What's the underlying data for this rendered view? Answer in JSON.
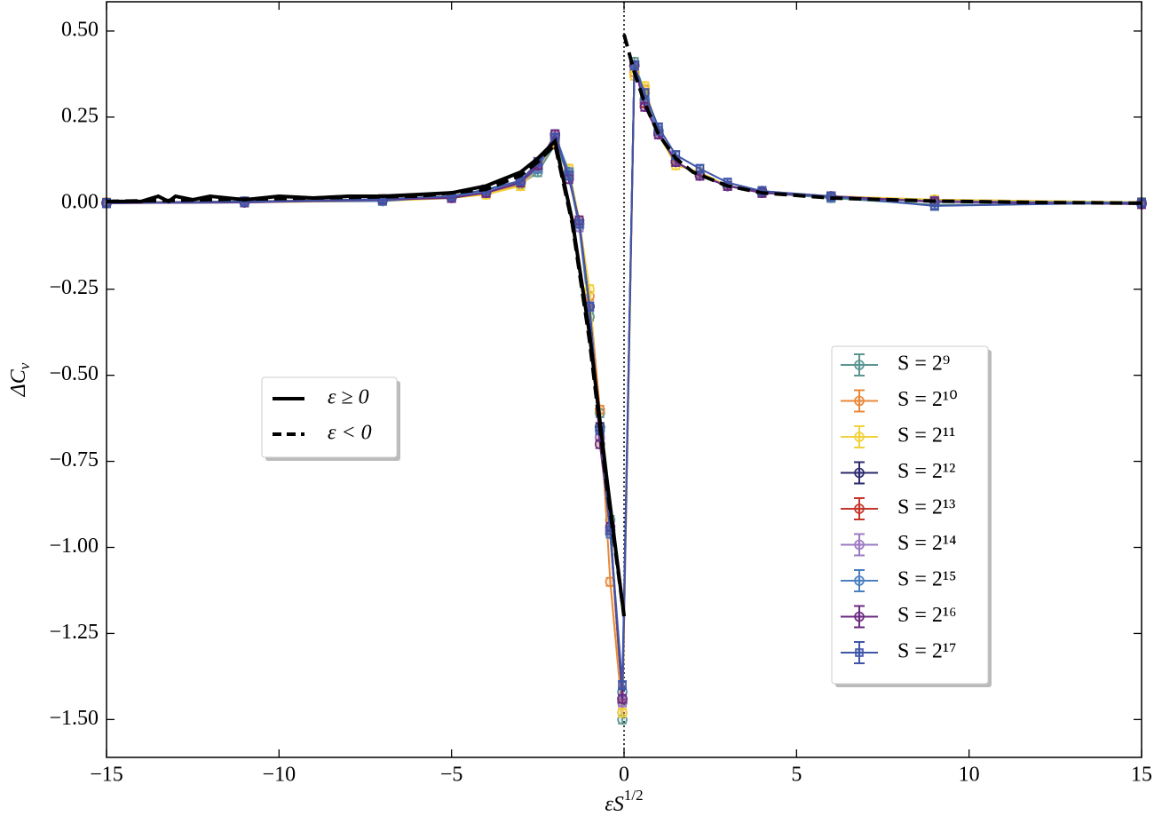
{
  "chart_data": {
    "type": "line",
    "xlabel": {
      "text": "εS",
      "superscript": "1/2"
    },
    "ylabel": {
      "text": "ΔC",
      "subscript": "v"
    },
    "xlim": [
      -15,
      15
    ],
    "ylim": [
      -1.61,
      0.585
    ],
    "xticks": [
      {
        "value": -15,
        "label": "−15"
      },
      {
        "value": -10,
        "label": "−10"
      },
      {
        "value": -5,
        "label": "−5"
      },
      0,
      5,
      10,
      15
    ],
    "yticks": [
      {
        "value": 0.5,
        "label": "0.50"
      },
      {
        "value": 0.25,
        "label": "0.25"
      },
      {
        "value": 0,
        "label": "0.00"
      },
      {
        "value": -0.25,
        "label": "−0.25"
      },
      {
        "value": -0.5,
        "label": "−0.50"
      },
      {
        "value": -0.75,
        "label": "−0.75"
      },
      {
        "value": -1,
        "label": "−1.00"
      },
      {
        "value": -1.25,
        "label": "−1.25"
      },
      {
        "value": -1.5,
        "label": "−1.50"
      }
    ],
    "reference_line_x": 0,
    "legend": "center right",
    "lines_legend": "center left",
    "x": [
      -15,
      -11,
      -7,
      -5,
      -4,
      -3,
      -2.5,
      -2,
      -1.6,
      -1.3,
      -1,
      -0.7,
      -0.4,
      -0.05,
      0.3,
      0.6,
      1,
      1.5,
      2.2,
      3,
      4,
      6,
      9,
      15
    ],
    "series": [
      {
        "name": "S = 2⁹",
        "color": "#5b9591",
        "marker": "circle",
        "error": 0.012,
        "values": [
          0,
          0.002,
          0.008,
          0.016,
          0.028,
          0.055,
          0.09,
          0.17,
          0.08,
          -0.07,
          -0.33,
          -0.61,
          -0.92,
          -1.5,
          0.41,
          0.32,
          0.21,
          0.12,
          0.08,
          0.05,
          0.03,
          0.015,
          -0.005,
          0
        ]
      },
      {
        "name": "S = 2¹⁰",
        "color": "#e8883a",
        "marker": "circle",
        "error": 0.012,
        "values": [
          0.002,
          0.005,
          0.012,
          0.02,
          0.032,
          0.05,
          0.12,
          0.17,
          0.1,
          -0.05,
          -0.27,
          -0.6,
          -1.1,
          -1.48,
          0.38,
          0.33,
          0.21,
          0.12,
          0.08,
          0.05,
          0.035,
          0.02,
          0.01,
          0.002
        ]
      },
      {
        "name": "S = 2¹¹",
        "color": "#f2d13b",
        "marker": "circle",
        "error": 0.012,
        "values": [
          0,
          0.003,
          0.006,
          0.015,
          0.025,
          0.05,
          0.1,
          0.18,
          0.1,
          -0.05,
          -0.25,
          -0.7,
          -0.96,
          -1.48,
          0.37,
          0.34,
          0.2,
          0.11,
          0.09,
          0.05,
          0.03,
          0.02,
          0.01,
          0.003
        ]
      },
      {
        "name": "S = 2¹²",
        "color": "#2b2a6e",
        "marker": "circle",
        "error": 0.012,
        "values": [
          0,
          0.004,
          0.01,
          0.018,
          0.03,
          0.06,
          0.1,
          0.19,
          0.09,
          -0.06,
          -0.3,
          -0.65,
          -0.95,
          -1.45,
          0.4,
          0.3,
          0.2,
          0.12,
          0.08,
          0.05,
          0.035,
          0.018,
          0.006,
          0
        ]
      },
      {
        "name": "S = 2¹³",
        "color": "#c4352a",
        "marker": "circle",
        "error": 0.012,
        "values": [
          0.001,
          0.005,
          0.008,
          0.02,
          0.03,
          0.065,
          0.1,
          0.2,
          0.08,
          -0.06,
          -0.3,
          -0.68,
          -0.96,
          -1.44,
          0.4,
          0.29,
          0.21,
          0.12,
          0.08,
          0.05,
          0.03,
          0.02,
          0.005,
          0.001
        ]
      },
      {
        "name": "S = 2¹⁴",
        "color": "#9b7ac4",
        "marker": "circle",
        "error": 0.012,
        "values": [
          0,
          0.003,
          0.01,
          0.018,
          0.03,
          0.06,
          0.1,
          0.19,
          0.09,
          -0.07,
          -0.3,
          -0.68,
          -0.95,
          -1.45,
          0.4,
          0.3,
          0.2,
          0.12,
          0.08,
          0.05,
          0.03,
          0.02,
          0.005,
          0
        ]
      },
      {
        "name": "S = 2¹⁵",
        "color": "#4a80c0",
        "marker": "circle",
        "error": 0.012,
        "values": [
          0,
          0.005,
          0.006,
          0.02,
          0.035,
          0.065,
          0.1,
          0.2,
          0.09,
          -0.06,
          -0.3,
          -0.66,
          -0.96,
          -1.42,
          0.4,
          0.3,
          0.21,
          0.12,
          0.08,
          0.05,
          0.03,
          0.018,
          0.004,
          0.002
        ]
      },
      {
        "name": "S = 2¹⁶",
        "color": "#6a2a80",
        "marker": "circle",
        "error": 0.012,
        "values": [
          0,
          0.002,
          0.01,
          0.015,
          0.03,
          0.06,
          0.11,
          0.2,
          0.07,
          -0.05,
          -0.3,
          -0.7,
          -0.94,
          -1.44,
          0.4,
          0.28,
          0.2,
          0.12,
          0.08,
          0.05,
          0.03,
          0.02,
          0.004,
          -0.003
        ]
      },
      {
        "name": "S = 2¹⁷",
        "color": "#3f56a8",
        "marker": "square",
        "error": 0.012,
        "values": [
          0.001,
          0.004,
          0.012,
          0.02,
          0.04,
          0.065,
          0.12,
          0.19,
          0.08,
          -0.06,
          -0.3,
          -0.66,
          -0.95,
          -1.4,
          0.4,
          0.32,
          0.22,
          0.14,
          0.1,
          0.06,
          0.035,
          0.02,
          -0.008,
          0.002
        ]
      }
    ],
    "lines": [
      {
        "name": "ε ≥ 0",
        "color": "#000000",
        "dash": "solid",
        "x": [
          -15,
          -14,
          -13.5,
          -13.2,
          -13,
          -12.5,
          -12,
          -11,
          -10,
          -9,
          -8,
          -7,
          -6,
          -5,
          -4,
          -3,
          -2.5,
          -2,
          -1.5,
          -1,
          -0.5,
          0
        ],
        "values": [
          0.005,
          0.005,
          0.02,
          0.005,
          0.02,
          0.01,
          0.02,
          0.01,
          0.02,
          0.015,
          0.02,
          0.02,
          0.025,
          0.03,
          0.05,
          0.09,
          0.13,
          0.18,
          -0.05,
          -0.38,
          -0.8,
          -1.2
        ]
      },
      {
        "name": "ε < 0",
        "color": "#000000",
        "dash": "dashed",
        "x": [
          -15,
          -12,
          -9,
          -6,
          -4,
          -3,
          -2.5,
          -2,
          -1.5,
          -1,
          -0.5,
          0,
          0,
          0,
          0.3,
          0.6,
          1,
          1.5,
          2,
          3,
          4,
          6,
          9,
          12,
          15
        ],
        "values": [
          0.005,
          0.01,
          0.015,
          0.02,
          0.04,
          0.08,
          0.12,
          0.17,
          -0.06,
          -0.4,
          -0.82,
          -1.2,
          null,
          0.49,
          0.38,
          0.29,
          0.2,
          0.13,
          0.09,
          0.05,
          0.03,
          0.015,
          0.006,
          0.002,
          0
        ]
      }
    ]
  }
}
